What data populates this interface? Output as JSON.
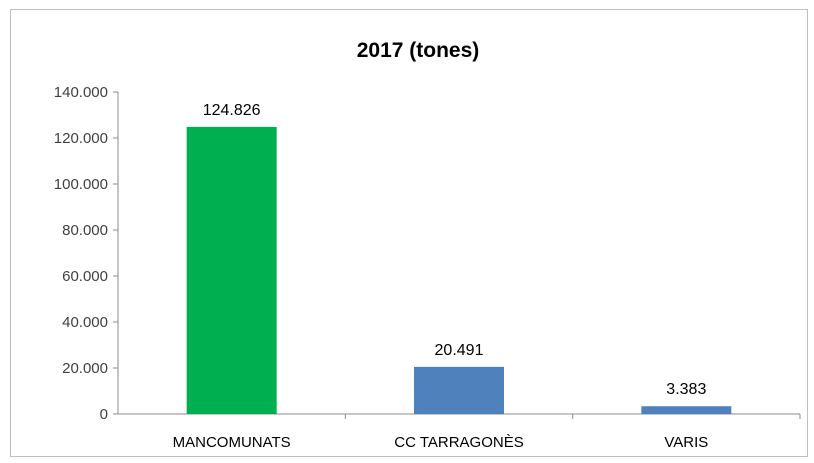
{
  "chart_data": {
    "type": "bar",
    "title": "2017 (tones)",
    "categories": [
      "MANCOMUNATS",
      "CC TARRAGONÈS",
      "VARIS"
    ],
    "values": [
      124826,
      20491,
      3383
    ],
    "value_labels": [
      "124.826",
      "20.491",
      "3.383"
    ],
    "bar_colors": [
      "#00b050",
      "#4f81bd",
      "#4f81bd"
    ],
    "ylim": [
      0,
      140000
    ],
    "yticks": [
      0,
      20000,
      40000,
      60000,
      80000,
      100000,
      120000,
      140000
    ],
    "ytick_labels": [
      "0",
      "20.000",
      "40.000",
      "60.000",
      "80.000",
      "100.000",
      "120.000",
      "140.000"
    ],
    "xlabel": "",
    "ylabel": "",
    "grid": false,
    "legend": "none"
  }
}
